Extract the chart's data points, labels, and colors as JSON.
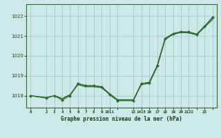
{
  "title": "Graphe pression niveau de la mer (hPa)",
  "bg_color": "#cce8e8",
  "grid_color": "#aacccc",
  "line_color": "#2d6a2d",
  "xlim": [
    -0.5,
    23.5
  ],
  "ylim": [
    1017.4,
    1022.6
  ],
  "yticks": [
    1018,
    1019,
    1020,
    1021,
    1022
  ],
  "xtick_positions": [
    0,
    2,
    3,
    4,
    5,
    6,
    7,
    8,
    9,
    10,
    11,
    13,
    14,
    15,
    16,
    17,
    18,
    19,
    20,
    21,
    22,
    23
  ],
  "xtick_labels": [
    "0",
    "2",
    "3",
    "4",
    "5",
    "6",
    "7",
    "8",
    "9",
    "1011",
    "",
    "13",
    "1415",
    "16",
    "17",
    "18",
    "19",
    "20",
    "2122",
    "",
    "23",
    ""
  ],
  "series_plain": [
    {
      "x": [
        0,
        2,
        3,
        4,
        5,
        6,
        7,
        8,
        9,
        10,
        11,
        13,
        14,
        15,
        16,
        17,
        18,
        19,
        20,
        21,
        22,
        23
      ],
      "y": [
        1018.0,
        1017.9,
        1018.0,
        1017.85,
        1018.05,
        1018.55,
        1018.45,
        1018.45,
        1018.4,
        1018.05,
        1017.78,
        1017.78,
        1018.55,
        1018.62,
        1019.45,
        1020.82,
        1021.08,
        1021.18,
        1021.15,
        1021.05,
        1021.45,
        1021.82
      ]
    },
    {
      "x": [
        0,
        2,
        3,
        4,
        5,
        6,
        7,
        8,
        9,
        10,
        11,
        13,
        14,
        15,
        16,
        17,
        18,
        19,
        20,
        21,
        22,
        23
      ],
      "y": [
        1018.0,
        1017.9,
        1018.0,
        1017.85,
        1018.05,
        1018.6,
        1018.5,
        1018.5,
        1018.45,
        1018.1,
        1017.8,
        1017.8,
        1018.6,
        1018.68,
        1019.52,
        1020.88,
        1021.12,
        1021.22,
        1021.2,
        1021.1,
        1021.5,
        1021.9
      ]
    }
  ],
  "series_markers": {
    "x": [
      0,
      2,
      3,
      4,
      5,
      6,
      7,
      8,
      9,
      10,
      11,
      13,
      14,
      15,
      16,
      17,
      18,
      19,
      20,
      21,
      22,
      23
    ],
    "y": [
      1018.0,
      1017.88,
      1018.0,
      1017.78,
      1018.0,
      1018.62,
      1018.5,
      1018.5,
      1018.45,
      1018.05,
      1017.75,
      1017.75,
      1018.62,
      1018.65,
      1019.5,
      1020.85,
      1021.1,
      1021.2,
      1021.2,
      1021.08,
      1021.5,
      1021.95
    ]
  }
}
